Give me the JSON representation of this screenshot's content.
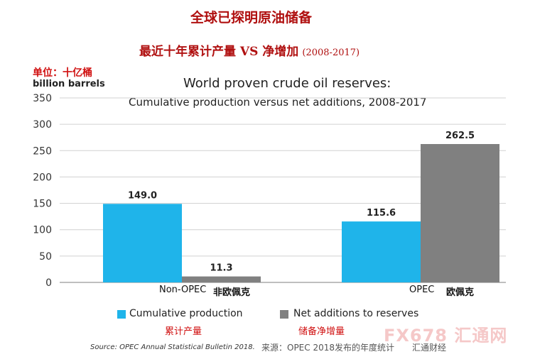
{
  "header": {
    "title_cn_line1": "全球已探明原油储备",
    "title_cn_line2": "最近十年累计产量 VS 净增加",
    "title_cn_range": "(2008-2017)",
    "unit_cn": "单位：十亿桶"
  },
  "footer": {
    "source_en": "Source: OPEC Annual Statistical Bulletin 2018.",
    "source_cn": "来源：OPEC 2018发布的年度统计",
    "credit_cn": "汇通财经",
    "watermark": "FX678 汇通网"
  },
  "colors": {
    "cumulative": "#1fb4ea",
    "net": "#808080",
    "red_text": "#d01010"
  },
  "chart_data": {
    "type": "bar",
    "title": "World proven crude oil reserves:",
    "subtitle": "Cumulative production versus net additions, 2008-2017",
    "ylabel": "billion barrels",
    "ylim": [
      0,
      350
    ],
    "yticks": [
      0,
      50,
      100,
      150,
      200,
      250,
      300,
      350
    ],
    "categories": [
      "Non-OPEC",
      "OPEC"
    ],
    "categories_cn": [
      "非欧佩克",
      "欧佩克"
    ],
    "series": [
      {
        "name": "Cumulative production",
        "name_cn": "累计产量",
        "values": [
          149.0,
          115.6
        ],
        "labels": [
          "149.0",
          "115.6"
        ]
      },
      {
        "name": "Net additions to reserves",
        "name_cn": "储备净增量",
        "values": [
          11.3,
          262.5
        ],
        "labels": [
          "11.3",
          "262.5"
        ]
      }
    ],
    "grid": true,
    "legend": "bottom"
  }
}
